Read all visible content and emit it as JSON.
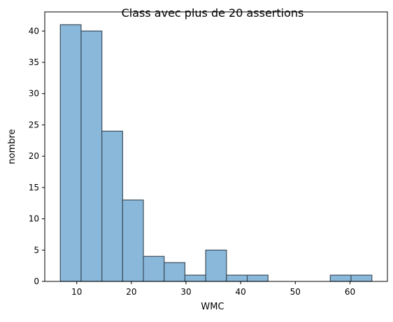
{
  "chart_data": {
    "type": "bar",
    "subtype": "histogram",
    "title": "Class avec plus de 20 assertions",
    "xlabel": "WMC",
    "ylabel": "nombre",
    "xlim": [
      4.15,
      66.85
    ],
    "ylim": [
      0,
      43.05
    ],
    "x_ticks": [
      10,
      20,
      30,
      40,
      50,
      60
    ],
    "y_ticks": [
      0,
      5,
      10,
      15,
      20,
      25,
      30,
      35,
      40
    ],
    "bin_edges": [
      7.0,
      10.8,
      14.6,
      18.4,
      22.2,
      26.0,
      29.8,
      33.6,
      37.4,
      41.2,
      45.0,
      48.8,
      52.6,
      56.4,
      60.2,
      64.0
    ],
    "values": [
      41,
      40,
      24,
      13,
      4,
      3,
      1,
      5,
      1,
      1,
      0,
      0,
      0,
      1,
      1
    ],
    "grid": false,
    "legend": "none",
    "bar_color": "#8ab8db",
    "bar_edge_color": "#3b4d5a"
  }
}
